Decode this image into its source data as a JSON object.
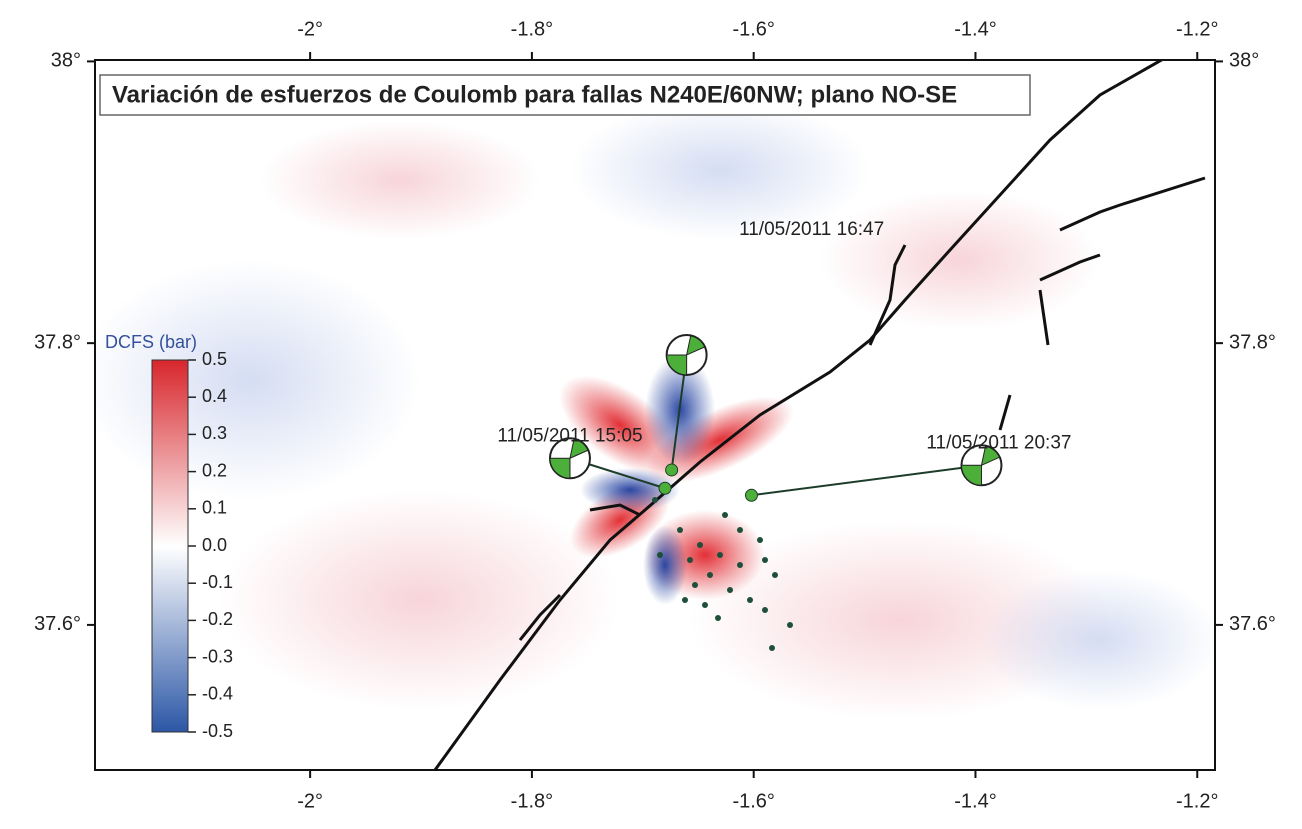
{
  "chart_data": {
    "type": "map",
    "title": "Variación de esfuerzos de Coulomb para fallas N240E/60NW; plano NO-SE",
    "xlim": [
      -2.194,
      -1.184
    ],
    "ylim": [
      37.497,
      38.001
    ],
    "xticks": [
      {
        "value": -2,
        "label": "-2°"
      },
      {
        "value": -1.8,
        "label": "-1.8°"
      },
      {
        "value": -1.6,
        "label": "-1.6°"
      },
      {
        "value": -1.4,
        "label": "-1.4°"
      },
      {
        "value": -1.2,
        "label": "-1.2°"
      }
    ],
    "yticks": [
      {
        "value": 38,
        "label": "38°"
      },
      {
        "value": 37.8,
        "label": "37.8°"
      },
      {
        "value": 37.6,
        "label": "37.6°"
      }
    ],
    "colorbar": {
      "label": "DCFS (bar)",
      "lim": [
        -0.5,
        0.5
      ],
      "colors": [
        "#2c57a6",
        "#ffffff",
        "#d7262c"
      ],
      "ticks": [
        0.5,
        0.4,
        0.3,
        0.2,
        0.1,
        {
          "value": 0,
          "label": "0.0"
        },
        -0.1,
        -0.2,
        -0.3,
        -0.4,
        -0.5
      ]
    },
    "events": [
      {
        "label": "11/05/2011 15:05",
        "lon": -1.68,
        "lat": 37.697
      },
      {
        "label": "11/05/2011 16:47",
        "lon": -1.674,
        "lat": 37.71
      },
      {
        "label": "11/05/2011 20:37",
        "lon": -1.602,
        "lat": 37.692
      }
    ]
  }
}
